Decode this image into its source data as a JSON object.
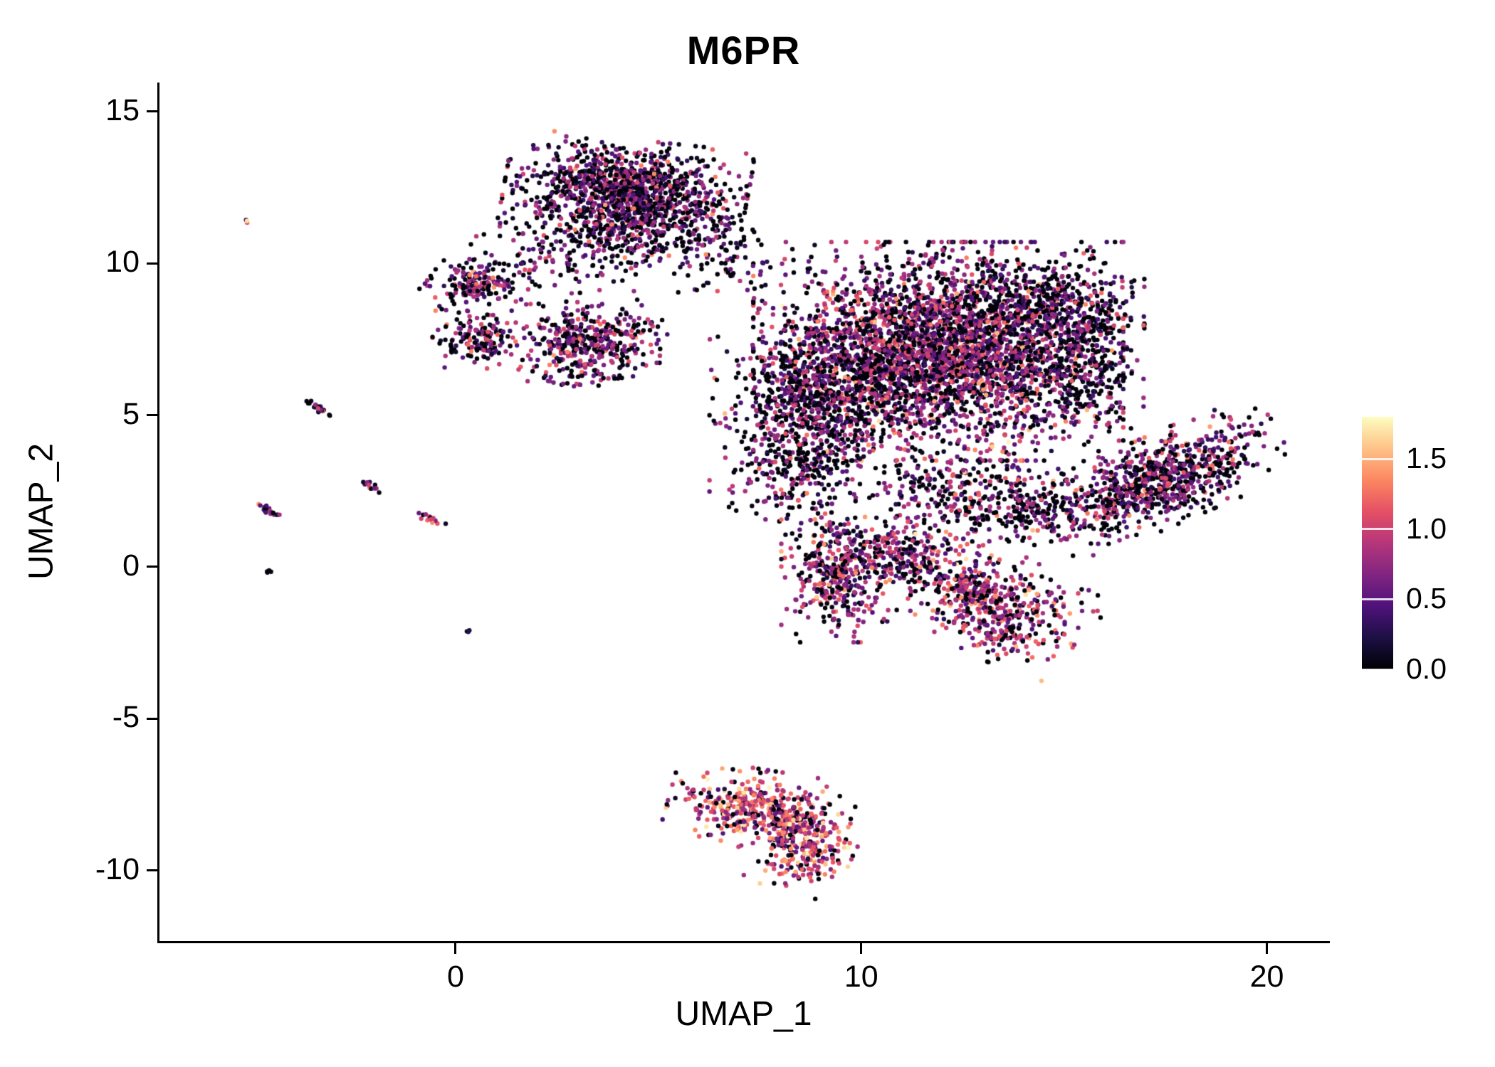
{
  "chart_data": {
    "type": "scatter",
    "title": "M6PR",
    "xlabel": "UMAP_1",
    "ylabel": "UMAP_2",
    "xlim": [
      -7.3,
      21.5
    ],
    "ylim": [
      -12.32,
      15.95
    ],
    "xticks": [
      {
        "v": 0,
        "label": "0"
      },
      {
        "v": 10,
        "label": "10"
      },
      {
        "v": 20,
        "label": "20"
      }
    ],
    "yticks": [
      {
        "v": -10,
        "label": "-10"
      },
      {
        "v": -5,
        "label": "-5"
      },
      {
        "v": 0,
        "label": "0"
      },
      {
        "v": 5,
        "label": "5"
      },
      {
        "v": 10,
        "label": "10"
      },
      {
        "v": 15,
        "label": "15"
      }
    ],
    "grid": false,
    "legend": {
      "position": "right",
      "type": "colorbar",
      "domain": [
        0,
        1.8
      ],
      "ticks": [
        {
          "value": 1.5,
          "label": "1.5"
        },
        {
          "value": 1.0,
          "label": "1.0"
        },
        {
          "value": 0.5,
          "label": "0.5"
        },
        {
          "value": 0.0,
          "label": "0.0"
        }
      ]
    },
    "colormap": {
      "name": "magma",
      "stops": [
        "#000004",
        "#1c1044",
        "#4f127b",
        "#812581",
        "#b5367a",
        "#e55064",
        "#fb8761",
        "#fec287",
        "#fcfdbf"
      ]
    },
    "point_radius_px": 3.2,
    "seed": 1337,
    "sigma": 0.34,
    "clusters": [
      {
        "name": "top_blob_core",
        "cx": 4.2,
        "cy": 12.4,
        "sx": 1.25,
        "sy": 0.7,
        "rot": -8,
        "n": 1150,
        "p0": 0.4,
        "mu": 0.62
      },
      {
        "name": "top_blob_lower",
        "cx": 4.3,
        "cy": 10.9,
        "sx": 1.1,
        "sy": 0.55,
        "rot": 0,
        "n": 260,
        "p0": 0.45,
        "mu": 0.6
      },
      {
        "name": "top_left_sparse",
        "cx": 2.4,
        "cy": 10.2,
        "sx": 0.85,
        "sy": 0.65,
        "rot": 0,
        "n": 90,
        "p0": 0.45,
        "mu": 0.6
      },
      {
        "name": "left_upper_small",
        "cx": 0.55,
        "cy": 9.35,
        "sx": 0.6,
        "sy": 0.38,
        "rot": 0,
        "n": 170,
        "p0": 0.35,
        "mu": 0.7
      },
      {
        "name": "left_lower_small",
        "cx": 0.5,
        "cy": 7.5,
        "sx": 0.48,
        "sy": 0.42,
        "rot": 0,
        "n": 150,
        "p0": 0.35,
        "mu": 0.7
      },
      {
        "name": "mid_small",
        "cx": 3.3,
        "cy": 7.4,
        "sx": 0.8,
        "sy": 0.6,
        "rot": 15,
        "n": 430,
        "p0": 0.32,
        "mu": 0.72
      },
      {
        "name": "bridge_sparse",
        "cx": 6.8,
        "cy": 10.3,
        "sx": 0.75,
        "sy": 0.7,
        "rot": 0,
        "n": 80,
        "p0": 0.5,
        "mu": 0.55
      },
      {
        "name": "main_core",
        "cx": 11.9,
        "cy": 7.1,
        "sx": 1.9,
        "sy": 1.5,
        "rot": 0,
        "n": 3200,
        "p0": 0.34,
        "mu": 0.72
      },
      {
        "name": "main_left",
        "cx": 8.9,
        "cy": 5.4,
        "sx": 1.1,
        "sy": 1.3,
        "rot": 0,
        "n": 850,
        "p0": 0.46,
        "mu": 0.6
      },
      {
        "name": "main_left_lower",
        "cx": 8.3,
        "cy": 3.1,
        "sx": 0.65,
        "sy": 0.8,
        "rot": 0,
        "n": 150,
        "p0": 0.5,
        "mu": 0.6
      },
      {
        "name": "main_topright",
        "cx": 14.7,
        "cy": 8.5,
        "sx": 0.95,
        "sy": 0.8,
        "rot": 0,
        "n": 420,
        "p0": 0.5,
        "mu": 0.58
      },
      {
        "name": "main_right_ext",
        "cx": 15.4,
        "cy": 6.1,
        "sx": 0.65,
        "sy": 0.95,
        "rot": 0,
        "n": 260,
        "p0": 0.46,
        "mu": 0.6
      },
      {
        "name": "main_lower_mid",
        "cx": 12.3,
        "cy": 2.4,
        "sx": 1.1,
        "sy": 0.65,
        "rot": 0,
        "n": 260,
        "p0": 0.42,
        "mu": 0.68
      },
      {
        "name": "connector_right",
        "cx": 14.4,
        "cy": 2.0,
        "sx": 0.85,
        "sy": 0.5,
        "rot": 15,
        "n": 190,
        "p0": 0.5,
        "mu": 0.6
      },
      {
        "name": "right_arm",
        "cx": 17.5,
        "cy": 2.9,
        "sx": 1.35,
        "sy": 0.6,
        "rot": 30,
        "n": 780,
        "p0": 0.4,
        "mu": 0.66
      },
      {
        "name": "column_below_main",
        "cx": 9.35,
        "cy": -0.2,
        "sx": 0.55,
        "sy": 0.95,
        "rot": 0,
        "n": 340,
        "p0": 0.28,
        "mu": 0.8
      },
      {
        "name": "blob_below_mid",
        "cx": 10.9,
        "cy": 0.3,
        "sx": 0.8,
        "sy": 0.55,
        "rot": 0,
        "n": 300,
        "p0": 0.34,
        "mu": 0.75
      },
      {
        "name": "lower_right_blob",
        "cx": 13.3,
        "cy": -1.2,
        "sx": 1.0,
        "sy": 0.7,
        "rot": -35,
        "n": 520,
        "p0": 0.28,
        "mu": 0.85
      },
      {
        "name": "bottom_cluster_main",
        "cx": 7.5,
        "cy": -8.0,
        "sx": 0.95,
        "sy": 0.55,
        "rot": -12,
        "n": 430,
        "p0": 0.15,
        "mu": 1.0,
        "sigma": 0.38
      },
      {
        "name": "bottom_cluster_tail",
        "cx": 8.6,
        "cy": -9.3,
        "sx": 0.5,
        "sy": 0.6,
        "rot": -20,
        "n": 230,
        "p0": 0.15,
        "mu": 1.02,
        "sigma": 0.38
      },
      {
        "name": "streak_1",
        "cx": -3.35,
        "cy": 5.2,
        "sx": 0.22,
        "sy": 0.045,
        "rot": -35,
        "n": 22,
        "p0": 0.45,
        "mu": 0.6
      },
      {
        "name": "streak_2",
        "cx": -4.6,
        "cy": 1.85,
        "sx": 0.2,
        "sy": 0.045,
        "rot": -35,
        "n": 20,
        "p0": 0.4,
        "mu": 0.7
      },
      {
        "name": "streak_3",
        "cx": -2.1,
        "cy": 2.65,
        "sx": 0.16,
        "sy": 0.045,
        "rot": -35,
        "n": 14,
        "p0": 0.3,
        "mu": 0.85
      },
      {
        "name": "streak_4",
        "cx": -0.65,
        "cy": 1.6,
        "sx": 0.22,
        "sy": 0.05,
        "rot": -30,
        "n": 16,
        "p0": 0.35,
        "mu": 0.9
      },
      {
        "name": "isolated_dot_pink",
        "cx": -5.15,
        "cy": 11.4,
        "sx": 0.05,
        "sy": 0.04,
        "rot": 0,
        "n": 3,
        "p0": 0.1,
        "mu": 1.0
      },
      {
        "name": "isolated_dot_dark_1",
        "cx": -4.55,
        "cy": -0.1,
        "sx": 0.06,
        "sy": 0.05,
        "rot": 0,
        "n": 4,
        "p0": 0.7,
        "mu": 0.4
      },
      {
        "name": "isolated_dot_dark_2",
        "cx": 0.3,
        "cy": -2.1,
        "sx": 0.05,
        "sy": 0.04,
        "rot": 0,
        "n": 3,
        "p0": 0.7,
        "mu": 0.35
      }
    ]
  },
  "styles": {
    "background": "#ffffff",
    "axis_color": "#000000",
    "text_color": "#000000"
  }
}
